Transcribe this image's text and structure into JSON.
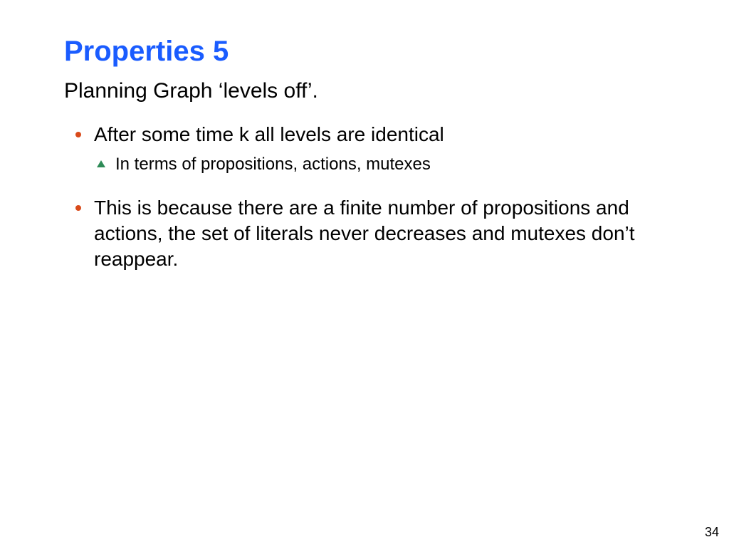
{
  "colors": {
    "title": "#1a5cff",
    "body": "#000000",
    "bullet_l1": "#d94a1a",
    "bullet_l2": "#2e8b57",
    "background": "#ffffff"
  },
  "typography": {
    "title_fontsize": 40,
    "title_weight": "bold",
    "intro_fontsize": 30,
    "l1_fontsize": 28,
    "l2_fontsize": 24,
    "pagenum_fontsize": 18,
    "font_family": "Arial"
  },
  "slide": {
    "title": "Properties 5",
    "intro": "Planning Graph ‘levels off’.",
    "bullets": [
      {
        "text": "After some time k all levels are identical",
        "sub": [
          "In terms of propositions, actions, mutexes"
        ]
      },
      {
        "text": "This is because there are a finite number of propositions and actions, the set of literals never decreases and mutexes don’t reappear.",
        "sub": []
      }
    ],
    "page_number": "34"
  }
}
